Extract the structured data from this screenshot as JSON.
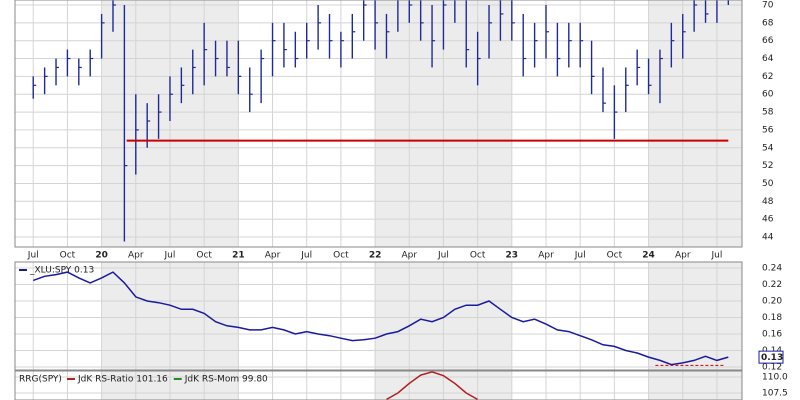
{
  "chart_data": [
    {
      "type": "ohlc",
      "color": "#1f2a99",
      "x": [
        0,
        1,
        2,
        3,
        4,
        5,
        6,
        7,
        8,
        9,
        10,
        11,
        12,
        13,
        14,
        15,
        16,
        17,
        18,
        19,
        20,
        21,
        22,
        23,
        24,
        25,
        26,
        27,
        28,
        29,
        30,
        31,
        32,
        33,
        34,
        35,
        36,
        37,
        38,
        39,
        40,
        41,
        42,
        43,
        44,
        45,
        46,
        47,
        48,
        49,
        50,
        51,
        52,
        53,
        54,
        55,
        56,
        57,
        58,
        59,
        60,
        61
      ],
      "high": [
        62,
        63,
        64,
        65,
        64,
        65,
        69,
        71,
        70,
        60,
        59,
        60,
        62,
        63,
        65,
        68,
        66,
        66,
        66,
        63,
        65,
        68,
        68,
        67,
        68,
        70,
        69,
        67,
        69,
        72,
        71,
        69,
        72,
        72,
        72,
        70,
        72,
        72,
        72,
        67,
        70,
        71,
        71,
        69,
        68,
        70,
        68,
        68,
        68,
        66,
        63,
        61,
        63,
        65,
        64,
        65,
        68,
        69,
        72,
        72,
        72,
        72
      ],
      "low": [
        59.5,
        60,
        61,
        62,
        61,
        62,
        64,
        67,
        43.5,
        51,
        54,
        55,
        57,
        59,
        60,
        61,
        62,
        62,
        60,
        58,
        59,
        62,
        63,
        63,
        64,
        65,
        64,
        63,
        64,
        66,
        65,
        64,
        67,
        68,
        66,
        63,
        65,
        68,
        63,
        61,
        64,
        66,
        66,
        62,
        63,
        64,
        62,
        63,
        63,
        60,
        58,
        55,
        58,
        61,
        60,
        59,
        63,
        64,
        67,
        68,
        68,
        70
      ],
      "close": [
        61,
        62,
        63,
        64,
        63,
        64,
        68,
        70,
        52,
        56,
        57,
        58,
        60,
        61,
        63,
        65,
        64,
        63,
        62,
        60,
        64,
        66,
        65,
        64,
        66,
        68,
        66,
        66,
        67,
        70,
        68,
        67,
        71,
        70,
        68,
        66,
        70,
        71,
        65,
        64,
        68,
        69,
        68,
        64,
        66,
        67,
        64,
        66,
        66,
        62,
        59,
        58,
        61,
        63,
        61,
        64,
        66,
        67,
        70,
        69,
        71,
        71
      ],
      "xlim": [
        -1.6,
        62.2
      ],
      "ylim": [
        42.88,
        70.56
      ],
      "xticks": [
        {
          "value": 0,
          "label": "Jul"
        },
        {
          "value": 3,
          "label": "Oct"
        },
        {
          "value": 6,
          "label": "20"
        },
        {
          "value": 9,
          "label": "Apr"
        },
        {
          "value": 12,
          "label": "Jul"
        },
        {
          "value": 15,
          "label": "Oct"
        },
        {
          "value": 18,
          "label": "21"
        },
        {
          "value": 21,
          "label": "Apr"
        },
        {
          "value": 24,
          "label": "Jul"
        },
        {
          "value": 27,
          "label": "Oct"
        },
        {
          "value": 30,
          "label": "22"
        },
        {
          "value": 33,
          "label": "Apr"
        },
        {
          "value": 36,
          "label": "Jul"
        },
        {
          "value": 39,
          "label": "Oct"
        },
        {
          "value": 42,
          "label": "23"
        },
        {
          "value": 45,
          "label": "Apr"
        },
        {
          "value": 48,
          "label": "Jul"
        },
        {
          "value": 51,
          "label": "Oct"
        },
        {
          "value": 54,
          "label": "24"
        },
        {
          "value": 57,
          "label": "Apr"
        },
        {
          "value": 60,
          "label": "Jul"
        }
      ],
      "yticks": [
        44,
        46,
        48,
        50,
        52,
        54,
        56,
        58,
        60,
        62,
        64,
        66,
        68,
        70
      ],
      "hline": {
        "value": 54.8,
        "xrange": [
          8.2,
          61
        ],
        "color": "#cc0000"
      }
    },
    {
      "type": "line",
      "x": [
        0,
        1,
        2,
        3,
        4,
        5,
        6,
        7,
        8,
        9,
        10,
        11,
        12,
        13,
        14,
        15,
        16,
        17,
        18,
        19,
        20,
        21,
        22,
        23,
        24,
        25,
        26,
        27,
        28,
        29,
        30,
        31,
        32,
        33,
        34,
        35,
        36,
        37,
        38,
        39,
        40,
        41,
        42,
        43,
        44,
        45,
        46,
        47,
        48,
        49,
        50,
        51,
        52,
        53,
        54,
        55,
        56,
        57,
        58,
        59,
        60,
        61
      ],
      "series": [
        {
          "name": "_XLU:SPY 0.13",
          "color": "#1a1aa0",
          "values": [
            0.225,
            0.23,
            0.232,
            0.235,
            0.228,
            0.222,
            0.228,
            0.235,
            0.222,
            0.205,
            0.2,
            0.198,
            0.195,
            0.19,
            0.19,
            0.185,
            0.175,
            0.17,
            0.168,
            0.165,
            0.165,
            0.168,
            0.165,
            0.16,
            0.163,
            0.16,
            0.158,
            0.155,
            0.152,
            0.153,
            0.155,
            0.16,
            0.163,
            0.17,
            0.178,
            0.175,
            0.18,
            0.19,
            0.195,
            0.195,
            0.2,
            0.19,
            0.18,
            0.175,
            0.178,
            0.172,
            0.165,
            0.163,
            0.158,
            0.153,
            0.147,
            0.145,
            0.14,
            0.137,
            0.132,
            0.128,
            0.123,
            0.125,
            0.128,
            0.133,
            0.128,
            0.132
          ]
        }
      ],
      "xlim": [
        -1.6,
        62.2
      ],
      "ylim": [
        0.1164,
        0.2473
      ],
      "yticks": [
        0.12,
        0.14,
        0.16,
        0.18,
        {
          "value": 0.2,
          "label": "0.20"
        },
        0.22,
        0.24
      ],
      "last_value_label": "0.13",
      "hline": {
        "value": 0.122,
        "xrange": [
          54.6,
          60.7
        ],
        "color": "#cc0000",
        "dash": true
      }
    },
    {
      "type": "line",
      "label": "RRG(SPY)",
      "x": [
        31,
        32,
        33,
        34,
        35,
        36,
        37,
        38,
        39
      ],
      "series": [
        {
          "name": "JdK RS-Ratio 101.16",
          "color": "#b22222",
          "values": [
            106.5,
            107.5,
            109,
            110.3,
            110.8,
            110.2,
            109,
            107.5,
            106.5
          ]
        },
        {
          "name": "JdK RS-Mom 99.80",
          "color": "#228b22",
          "values": [
            null,
            null,
            null,
            null,
            null,
            null,
            null,
            null,
            null
          ]
        }
      ],
      "xlim": [
        -1.6,
        62.2
      ],
      "ylim": [
        106.41,
        110.94
      ],
      "yticks": [
        {
          "value": 107.5,
          "label": "107.5"
        },
        {
          "value": 110,
          "label": "110.0"
        }
      ]
    }
  ]
}
